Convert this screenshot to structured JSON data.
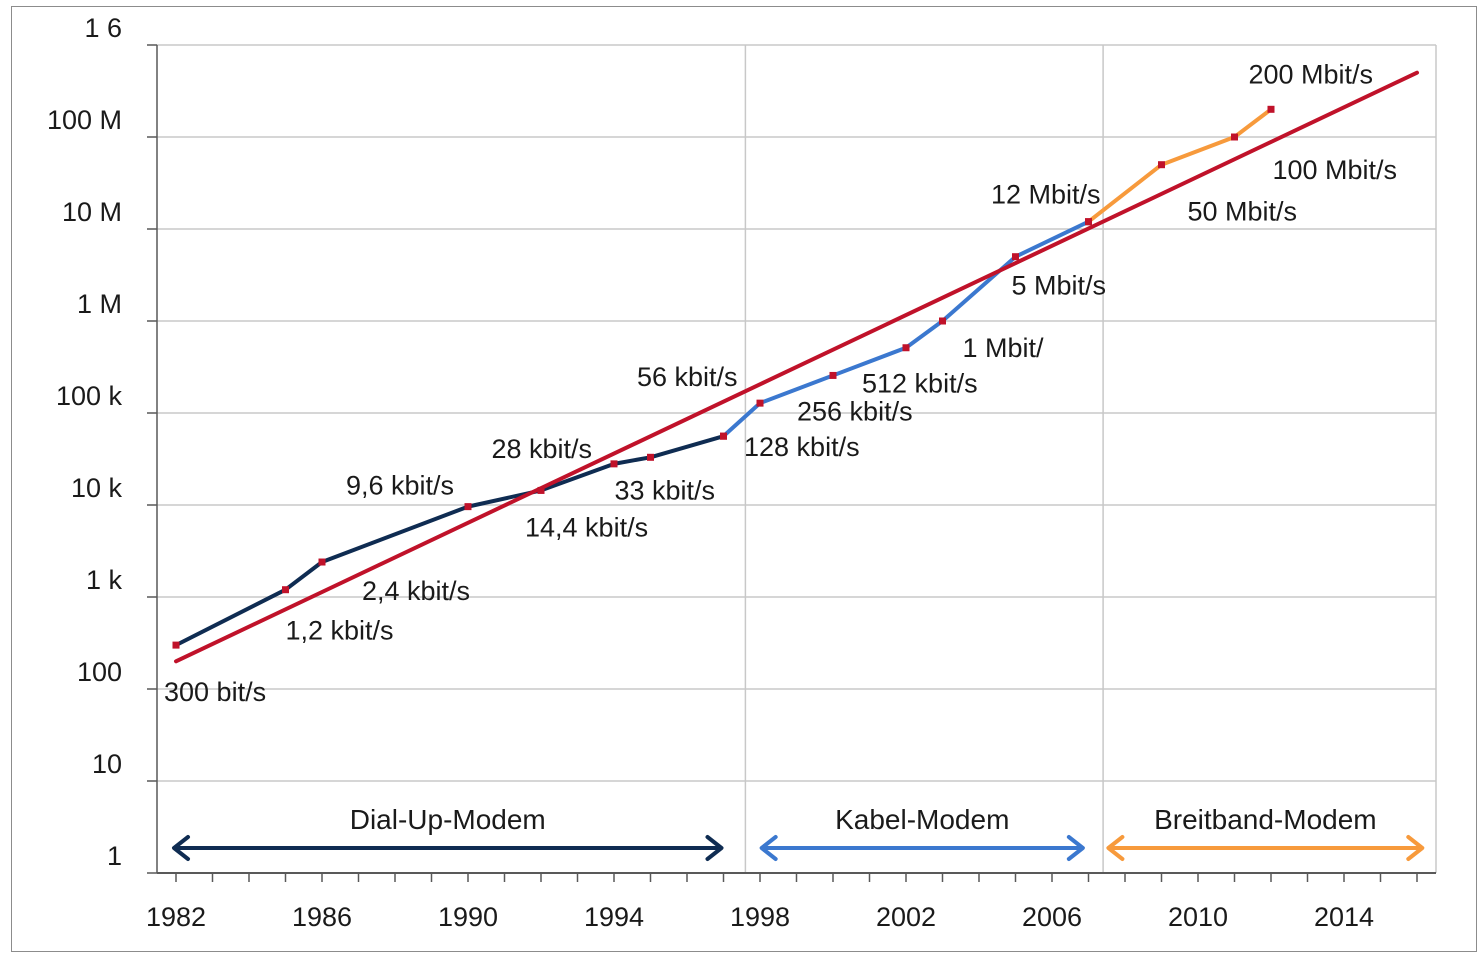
{
  "chart_data": {
    "type": "line",
    "title": "",
    "xlabel": "",
    "ylabel": "",
    "y_scale": "log",
    "xlim": [
      1981,
      2016
    ],
    "ylim": [
      1,
      1000000000
    ],
    "grid": true,
    "y_ticks": [
      {
        "value": 1,
        "label": "1"
      },
      {
        "value": 10,
        "label": "10"
      },
      {
        "value": 100,
        "label": "100"
      },
      {
        "value": 1000,
        "label": "1 k"
      },
      {
        "value": 10000,
        "label": "10 k"
      },
      {
        "value": 100000,
        "label": "100 k"
      },
      {
        "value": 1000000,
        "label": "1 M"
      },
      {
        "value": 10000000,
        "label": "10 M"
      },
      {
        "value": 100000000,
        "label": "100 M"
      },
      {
        "value": 1000000000,
        "label": "1 6"
      }
    ],
    "x_ticks": [
      {
        "value": 1982,
        "label": "1982"
      },
      {
        "value": 1986,
        "label": "1986"
      },
      {
        "value": 1990,
        "label": "1990"
      },
      {
        "value": 1994,
        "label": "1994"
      },
      {
        "value": 1998,
        "label": "1998"
      },
      {
        "value": 2002,
        "label": "2002"
      },
      {
        "value": 2006,
        "label": "2006"
      },
      {
        "value": 2010,
        "label": "2010"
      },
      {
        "value": 2014,
        "label": "2014"
      }
    ],
    "era_dividers": [
      1997.6,
      2007.4
    ],
    "series": [
      {
        "color": "#0f2c52",
        "points": [
          [
            1982,
            300
          ],
          [
            1985,
            1200
          ],
          [
            1986,
            2400
          ],
          [
            1990,
            9600
          ],
          [
            1992,
            14400
          ],
          [
            1994,
            28000
          ],
          [
            1995,
            33000
          ],
          [
            1997,
            56000
          ]
        ]
      },
      {
        "color": "#3b78cf",
        "points": [
          [
            1997,
            56000
          ],
          [
            1998,
            128000
          ],
          [
            2000,
            256000
          ],
          [
            2002,
            512000
          ],
          [
            2003,
            1000000
          ],
          [
            2005,
            5000000
          ],
          [
            2007,
            12000000
          ]
        ]
      },
      {
        "color": "#f79a3c",
        "points": [
          [
            2007,
            12000000
          ],
          [
            2009,
            50000000
          ],
          [
            2011,
            100000000
          ],
          [
            2012,
            200000000
          ]
        ]
      },
      {
        "color": "#c0122a",
        "width": 4,
        "points": [
          [
            1982,
            200
          ],
          [
            2016,
            500000000
          ]
        ]
      }
    ],
    "data_labels": [
      {
        "text": "300 bit/s",
        "x": 1982,
        "y": 300,
        "anchor": "start",
        "dx": -12,
        "dy": 56
      },
      {
        "text": "1,2 kbit/s",
        "x": 1985,
        "y": 1200,
        "anchor": "start",
        "dx": 0,
        "dy": 50
      },
      {
        "text": "2,4 kbit/s",
        "x": 1986,
        "y": 2400,
        "anchor": "start",
        "dx": 40,
        "dy": 38
      },
      {
        "text": "9,6 kbit/s",
        "x": 1990,
        "y": 9600,
        "anchor": "end",
        "dx": -14,
        "dy": -12
      },
      {
        "text": "14,4 kbit/s",
        "x": 1992,
        "y": 14400,
        "anchor": "start",
        "dx": -16,
        "dy": 46
      },
      {
        "text": "28 kbit/s",
        "x": 1994,
        "y": 28000,
        "anchor": "end",
        "dx": -22,
        "dy": -6
      },
      {
        "text": "33 kbit/s",
        "x": 1995,
        "y": 33000,
        "anchor": "start",
        "dx": -36,
        "dy": 42
      },
      {
        "text": "56 kbit/s",
        "x": 1997,
        "y": 56000,
        "anchor": "end",
        "dx": 14,
        "dy": -50
      },
      {
        "text": "128 kbit/s",
        "x": 1998,
        "y": 128000,
        "anchor": "start",
        "dx": -16,
        "dy": 53
      },
      {
        "text": "256 kbit/s",
        "x": 2000,
        "y": 256000,
        "anchor": "start",
        "dx": -36,
        "dy": 45
      },
      {
        "text": "512 kbit/s",
        "x": 2002,
        "y": 512000,
        "anchor": "start",
        "dx": -44,
        "dy": 45
      },
      {
        "text": "1 Mbit/",
        "x": 2003,
        "y": 1000000,
        "anchor": "start",
        "dx": 20,
        "dy": 36
      },
      {
        "text": "5 Mbit/s",
        "x": 2005,
        "y": 5000000,
        "anchor": "start",
        "dx": -4,
        "dy": 38
      },
      {
        "text": "12 Mbit/s",
        "x": 2007,
        "y": 12000000,
        "anchor": "end",
        "dx": 12,
        "dy": -18
      },
      {
        "text": "50 Mbit/s",
        "x": 2009,
        "y": 50000000,
        "anchor": "start",
        "dx": 26,
        "dy": 56
      },
      {
        "text": "100 Mbit/s",
        "x": 2011,
        "y": 100000000,
        "anchor": "start",
        "dx": 38,
        "dy": 42
      },
      {
        "text": "200 Mbit/s",
        "x": 2012,
        "y": 200000000,
        "anchor": "end",
        "dx": 102,
        "dy": -26
      }
    ],
    "eras": [
      {
        "label": "Dial-Up-Modem",
        "from": 1982,
        "to": 1997.0,
        "color": "#0f2c52"
      },
      {
        "label": "Kabel-Modem",
        "from": 1998.1,
        "to": 2006.9,
        "color": "#3b78cf"
      },
      {
        "label": "Breitband-Modem",
        "from": 2007.6,
        "to": 2016.2,
        "color": "#f79a3c"
      }
    ]
  }
}
